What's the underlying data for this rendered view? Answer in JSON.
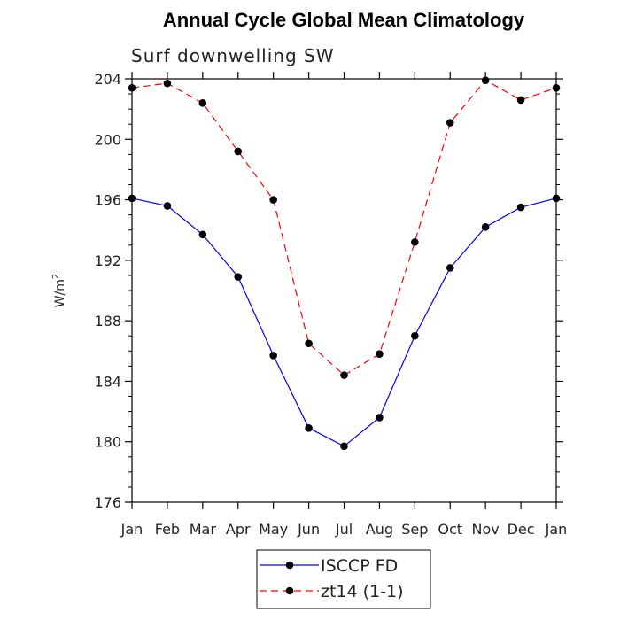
{
  "chart_data": {
    "type": "line",
    "title": "Annual Cycle Global Mean Climatology",
    "subtitle": "Surf downwelling SW",
    "ylabel_base": "W/m",
    "ylabel_sup": "2",
    "categories": [
      "Jan",
      "Feb",
      "Mar",
      "Apr",
      "May",
      "Jun",
      "Jul",
      "Aug",
      "Sep",
      "Oct",
      "Nov",
      "Dec",
      "Jan"
    ],
    "ylim": [
      176,
      204
    ],
    "yticks": [
      176,
      180,
      184,
      188,
      192,
      196,
      200,
      204
    ],
    "series": [
      {
        "name": "ISCCP FD",
        "color": "#0000ff",
        "dash": "solid",
        "values": [
          196.1,
          195.6,
          193.7,
          190.9,
          185.7,
          180.9,
          179.7,
          181.6,
          187.0,
          191.5,
          194.2,
          195.5,
          196.1
        ]
      },
      {
        "name": "zt14 (1-1)",
        "color": "#ff0000",
        "dash": "dashed",
        "values": [
          203.4,
          203.7,
          202.4,
          199.2,
          196.0,
          186.5,
          184.4,
          185.8,
          193.2,
          201.1,
          203.9,
          202.6,
          203.4
        ]
      }
    ],
    "legend_position": "bottom-center",
    "grid": false
  }
}
